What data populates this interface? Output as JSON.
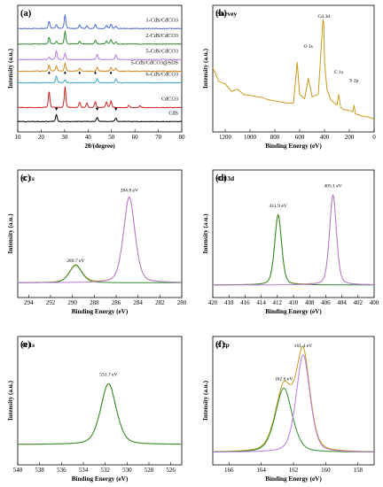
{
  "colors": {
    "gold": "#c99a1c",
    "green": "#2e8b2e",
    "violet": "#b77be0",
    "blue": "#4a6fd6",
    "teal": "#3aa7c7",
    "orange": "#d98a1b",
    "red": "#cc2222",
    "black": "#000000"
  },
  "chart_data": [
    {
      "panel_label": "(a)",
      "type": "line",
      "title": "",
      "xlabel": "2θ/(degree)",
      "ylabel": "Intensity (a.u.)",
      "xlim": [
        10,
        80
      ],
      "x_ticks": [
        "10",
        "20",
        "30",
        "40",
        "50",
        "60",
        "70",
        "80"
      ],
      "x_reversed": false,
      "series": [
        {
          "name": "1-CdS/CdCO3",
          "color": "#4a6fd6",
          "offset": 6.0,
          "peaks": [
            [
              23.4,
              0.5
            ],
            [
              26.5,
              0.25
            ],
            [
              30.2,
              0.9
            ],
            [
              36.4,
              0.25
            ],
            [
              39.5,
              0.2
            ],
            [
              43.1,
              0.28
            ],
            [
              47.9,
              0.22
            ],
            [
              49.8,
              0.3
            ],
            [
              51.9,
              0.15
            ]
          ]
        },
        {
          "name": "2-CdS/CdCO3",
          "color": "#2e8b2e",
          "offset": 5.0,
          "peaks": [
            [
              23.4,
              0.45
            ],
            [
              26.5,
              0.2
            ],
            [
              30.2,
              0.85
            ],
            [
              36.4,
              0.2
            ],
            [
              43.1,
              0.25
            ],
            [
              47.9,
              0.2
            ],
            [
              49.8,
              0.3
            ],
            [
              51.9,
              0.15
            ]
          ]
        },
        {
          "name": "5-CdS/CdCO3",
          "color": "#b77be0",
          "offset": 4.0,
          "peaks": [
            [
              26.5,
              0.55
            ],
            [
              30.2,
              0.4
            ],
            [
              43.9,
              0.35
            ],
            [
              51.9,
              0.3
            ],
            [
              23.4,
              0.15
            ]
          ]
        },
        {
          "name": "5-CdS/CdCO3@SDS",
          "color": "#d98a1b",
          "offset": 3.25,
          "peaks": [
            [
              23.4,
              0.4
            ],
            [
              26.5,
              0.35
            ],
            [
              30.2,
              0.55
            ],
            [
              36.4,
              0.2
            ],
            [
              43.9,
              0.25
            ],
            [
              49.8,
              0.25
            ],
            [
              51.9,
              0.2
            ]
          ]
        },
        {
          "name": "6-CdS/CdCO3",
          "color": "#3aa7c7",
          "offset": 2.5,
          "peaks": [
            [
              26.5,
              0.45
            ],
            [
              30.2,
              0.2
            ],
            [
              43.9,
              0.3
            ],
            [
              51.9,
              0.25
            ]
          ]
        },
        {
          "name": "CdCO3",
          "color": "#cc2222",
          "offset": 0.9,
          "peaks": [
            [
              23.4,
              1.05
            ],
            [
              30.2,
              1.35
            ],
            [
              36.4,
              0.35
            ],
            [
              39.5,
              0.3
            ],
            [
              43.1,
              0.4
            ],
            [
              47.9,
              0.35
            ],
            [
              49.8,
              0.45
            ],
            [
              57.4,
              0.15
            ],
            [
              62.2,
              0.12
            ]
          ]
        },
        {
          "name": "CdS",
          "color": "#000000",
          "offset": 0.0,
          "peaks": [
            [
              26.5,
              0.45
            ],
            [
              43.9,
              0.28
            ],
            [
              51.9,
              0.24
            ]
          ]
        }
      ],
      "markers": [
        {
          "symbol": "♦",
          "color": "#cc2222",
          "x": [
            23.4,
            30.2,
            36.4,
            43.1,
            49.8
          ]
        },
        {
          "symbol": "▼",
          "color": "#000000",
          "x": [
            26.5,
            43.9,
            51.9
          ]
        }
      ]
    },
    {
      "panel_label": "(b)",
      "type": "line",
      "title": "Survey",
      "xlabel": "Binding Energy (eV)",
      "ylabel": "Intensity (a.u.)",
      "xlim": [
        1300,
        0
      ],
      "x_ticks": [
        "1200",
        "1000",
        "800",
        "600",
        "400",
        "200",
        "0"
      ],
      "x_reversed": true,
      "series": [
        {
          "name": "",
          "color": "#c99a1c",
          "x": [
            1300,
            1250,
            1200,
            1150,
            1100,
            1050,
            1000,
            950,
            900,
            850,
            800,
            750,
            700,
            650,
            620,
            600,
            560,
            531,
            500,
            450,
            412,
            405,
            400,
            380,
            350,
            300,
            285,
            270,
            250,
            200,
            170,
            162,
            150,
            100,
            50,
            0
          ],
          "y": [
            0.55,
            0.42,
            0.4,
            0.33,
            0.35,
            0.3,
            0.29,
            0.28,
            0.27,
            0.25,
            0.24,
            0.23,
            0.22,
            0.22,
            0.6,
            0.3,
            0.26,
            0.45,
            0.28,
            0.3,
            1.0,
            0.95,
            0.6,
            0.35,
            0.25,
            0.2,
            0.3,
            0.18,
            0.16,
            0.15,
            0.14,
            0.2,
            0.12,
            0.1,
            0.09,
            0.07
          ]
        }
      ],
      "annotations": [
        {
          "text": "Cd 3d",
          "x": 405,
          "y": 1.0
        },
        {
          "text": "O 1s",
          "x": 531,
          "y": 0.72
        },
        {
          "text": "C 1s",
          "x": 285,
          "y": 0.48
        },
        {
          "text": "S 2p",
          "x": 162,
          "y": 0.4
        }
      ]
    },
    {
      "panel_label": "(c)",
      "type": "line",
      "title": "C 1s",
      "xlabel": "Binding Energy (eV)",
      "ylabel": "Intensity (a.u.)",
      "xlim": [
        295,
        280
      ],
      "x_ticks": [
        "294",
        "292",
        "290",
        "288",
        "286",
        "284",
        "282",
        "280"
      ],
      "x_reversed": true,
      "baseline": 0.07,
      "series": [
        {
          "name": "",
          "color": "#c99a1c",
          "kind": "envelope"
        },
        {
          "name": "",
          "color": "#2e8b2e",
          "kind": "component",
          "center": 289.7,
          "height": 0.16,
          "width": 0.6
        },
        {
          "name": "",
          "color": "#b77be0",
          "kind": "component",
          "center": 284.8,
          "height": 0.78,
          "width": 0.55
        }
      ],
      "annotations": [
        {
          "text": "289.7 eV",
          "x": 289.7,
          "y": 0.26
        },
        {
          "text": "284.8 eV",
          "x": 284.8,
          "y": 0.9
        }
      ]
    },
    {
      "panel_label": "(d)",
      "type": "line",
      "title": "Cd 3d",
      "xlabel": "Binding Energy (eV)",
      "ylabel": "Intensity (a.u.)",
      "xlim": [
        420,
        400
      ],
      "x_ticks": [
        "420",
        "418",
        "416",
        "414",
        "412",
        "410",
        "408",
        "406",
        "404",
        "402",
        "400"
      ],
      "x_reversed": true,
      "baseline": 0.05,
      "series": [
        {
          "name": "",
          "color": "#c99a1c",
          "kind": "envelope"
        },
        {
          "name": "",
          "color": "#2e8b2e",
          "kind": "component",
          "center": 411.9,
          "height": 0.64,
          "width": 0.45
        },
        {
          "name": "",
          "color": "#b77be0",
          "kind": "component",
          "center": 405.1,
          "height": 0.82,
          "width": 0.45
        }
      ],
      "annotations": [
        {
          "text": "411.9 eV",
          "x": 411.9,
          "y": 0.76
        },
        {
          "text": "405.1 eV",
          "x": 405.1,
          "y": 0.94
        }
      ]
    },
    {
      "panel_label": "(e)",
      "type": "line",
      "title": "O 1s",
      "xlabel": "Binding Energy (eV)",
      "ylabel": "Intensity (a.u.)",
      "xlim": [
        540,
        525
      ],
      "x_ticks": [
        "540",
        "538",
        "536",
        "534",
        "532",
        "530",
        "528",
        "526"
      ],
      "x_reversed": true,
      "baseline": 0.12,
      "series": [
        {
          "name": "",
          "color": "#c99a1c",
          "kind": "envelope"
        },
        {
          "name": "",
          "color": "#2e8b2e",
          "kind": "component",
          "center": 531.7,
          "height": 0.55,
          "width": 0.75
        }
      ],
      "annotations": [
        {
          "text": "531.7 eV",
          "x": 531.7,
          "y": 0.74
        }
      ]
    },
    {
      "panel_label": "(f)",
      "type": "line",
      "title": "S 2p",
      "xlabel": "Binding Energy (eV)",
      "ylabel": "Intensity (a.u.)",
      "xlim": [
        167,
        157
      ],
      "x_ticks": [
        "166",
        "164",
        "162",
        "160",
        "158"
      ],
      "x_reversed": true,
      "baseline": 0.05,
      "series": [
        {
          "name": "",
          "color": "#c99a1c",
          "kind": "envelope"
        },
        {
          "name": "",
          "color": "#2e8b2e",
          "kind": "component",
          "center": 162.6,
          "height": 0.58,
          "width": 0.55
        },
        {
          "name": "",
          "color": "#b77be0",
          "kind": "component",
          "center": 161.4,
          "height": 0.88,
          "width": 0.45
        }
      ],
      "annotations": [
        {
          "text": "162.6 eV",
          "x": 162.6,
          "y": 0.7
        },
        {
          "text": "161.4 eV",
          "x": 161.4,
          "y": 1.0
        }
      ]
    }
  ]
}
